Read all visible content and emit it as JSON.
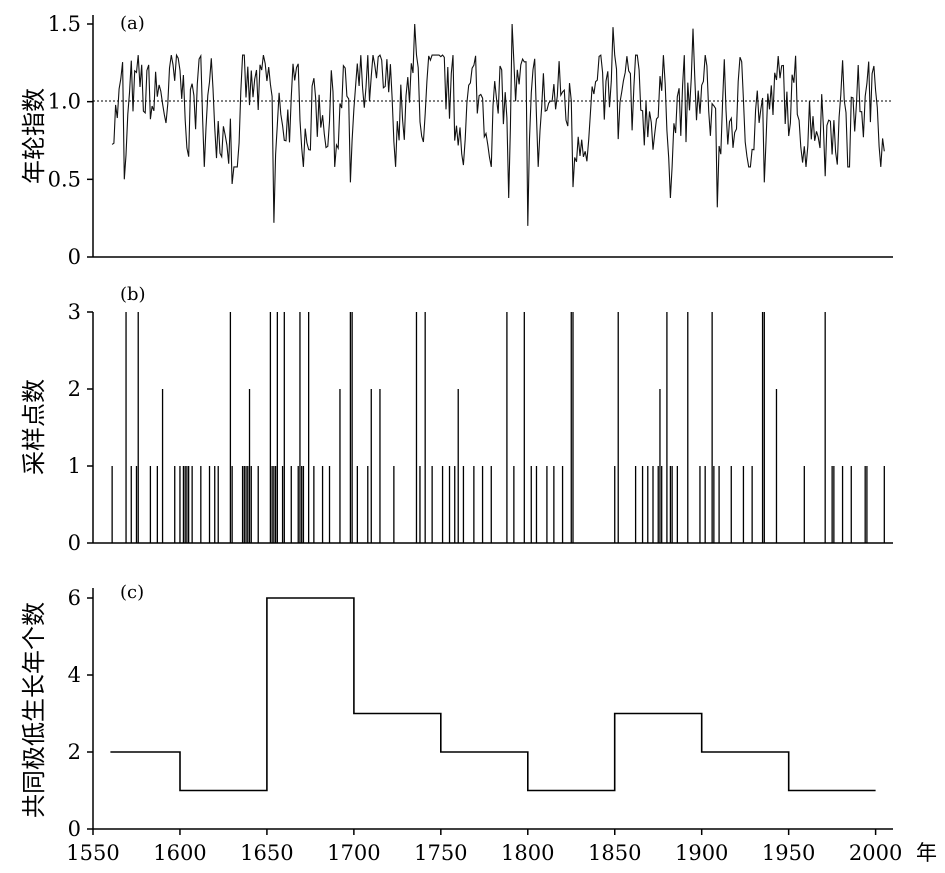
{
  "chart_data": [
    {
      "panel": "(a)",
      "type": "line",
      "ylabel": "年轮指数",
      "ylim": [
        0,
        1.5
      ],
      "yticks": [
        "0",
        "0.5",
        "1.0",
        "1.5"
      ],
      "reference_line": 1.0,
      "x_range": [
        1561,
        2005
      ],
      "notable_minima": [
        {
          "x": 1568,
          "y": 0.5
        },
        {
          "x": 1630,
          "y": 0.47
        },
        {
          "x": 1654,
          "y": 0.22
        },
        {
          "x": 1698,
          "y": 0.48
        },
        {
          "x": 1789,
          "y": 0.38
        },
        {
          "x": 1800,
          "y": 0.2
        },
        {
          "x": 1826,
          "y": 0.45
        },
        {
          "x": 1882,
          "y": 0.38
        },
        {
          "x": 1909,
          "y": 0.32
        },
        {
          "x": 1936,
          "y": 0.48
        },
        {
          "x": 1971,
          "y": 0.52
        }
      ],
      "notable_maxima": [
        {
          "x": 1735,
          "y": 1.5
        },
        {
          "x": 1791,
          "y": 1.5
        },
        {
          "x": 1849,
          "y": 1.48
        },
        {
          "x": 1895,
          "y": 1.47
        }
      ]
    },
    {
      "panel": "(b)",
      "type": "bar",
      "ylabel": "采样点数",
      "ylim": [
        0,
        3
      ],
      "yticks": [
        "0",
        "1",
        "2",
        "3"
      ],
      "points": [
        [
          1561,
          1
        ],
        [
          1569,
          3
        ],
        [
          1572,
          1
        ],
        [
          1575,
          1
        ],
        [
          1576,
          3
        ],
        [
          1583,
          1
        ],
        [
          1587,
          1
        ],
        [
          1590,
          2
        ],
        [
          1597,
          1
        ],
        [
          1600,
          1
        ],
        [
          1602,
          1
        ],
        [
          1603,
          1
        ],
        [
          1604,
          1
        ],
        [
          1605,
          1
        ],
        [
          1607,
          1
        ],
        [
          1612,
          1
        ],
        [
          1617,
          1
        ],
        [
          1620,
          1
        ],
        [
          1622,
          1
        ],
        [
          1629,
          3
        ],
        [
          1630,
          1
        ],
        [
          1636,
          1
        ],
        [
          1637,
          1
        ],
        [
          1638,
          1
        ],
        [
          1639,
          1
        ],
        [
          1640,
          2
        ],
        [
          1641,
          1
        ],
        [
          1645,
          1
        ],
        [
          1652,
          3
        ],
        [
          1653,
          1
        ],
        [
          1654,
          1
        ],
        [
          1655,
          1
        ],
        [
          1656,
          3
        ],
        [
          1659,
          1
        ],
        [
          1660,
          3
        ],
        [
          1664,
          1
        ],
        [
          1668,
          1
        ],
        [
          1669,
          3
        ],
        [
          1670,
          1
        ],
        [
          1671,
          1
        ],
        [
          1674,
          3
        ],
        [
          1677,
          1
        ],
        [
          1682,
          1
        ],
        [
          1686,
          1
        ],
        [
          1692,
          2
        ],
        [
          1698,
          3
        ],
        [
          1699,
          3
        ],
        [
          1702,
          1
        ],
        [
          1708,
          1
        ],
        [
          1710,
          2
        ],
        [
          1715,
          2
        ],
        [
          1723,
          1
        ],
        [
          1736,
          3
        ],
        [
          1738,
          1
        ],
        [
          1741,
          3
        ],
        [
          1745,
          1
        ],
        [
          1751,
          1
        ],
        [
          1755,
          1
        ],
        [
          1758,
          1
        ],
        [
          1760,
          2
        ],
        [
          1763,
          1
        ],
        [
          1769,
          1
        ],
        [
          1774,
          1
        ],
        [
          1779,
          1
        ],
        [
          1788,
          3
        ],
        [
          1792,
          1
        ],
        [
          1798,
          3
        ],
        [
          1802,
          1
        ],
        [
          1805,
          1
        ],
        [
          1811,
          1
        ],
        [
          1815,
          1
        ],
        [
          1820,
          1
        ],
        [
          1825,
          3
        ],
        [
          1826,
          3
        ],
        [
          1850,
          1
        ],
        [
          1852,
          3
        ],
        [
          1862,
          1
        ],
        [
          1866,
          1
        ],
        [
          1869,
          1
        ],
        [
          1872,
          1
        ],
        [
          1875,
          1
        ],
        [
          1876,
          2
        ],
        [
          1877,
          1
        ],
        [
          1880,
          3
        ],
        [
          1882,
          1
        ],
        [
          1883,
          1
        ],
        [
          1886,
          1
        ],
        [
          1892,
          3
        ],
        [
          1899,
          1
        ],
        [
          1902,
          1
        ],
        [
          1906,
          3
        ],
        [
          1907,
          1
        ],
        [
          1910,
          1
        ],
        [
          1917,
          1
        ],
        [
          1924,
          1
        ],
        [
          1929,
          1
        ],
        [
          1935,
          3
        ],
        [
          1936,
          3
        ],
        [
          1943,
          2
        ],
        [
          1959,
          1
        ],
        [
          1971,
          3
        ],
        [
          1975,
          1
        ],
        [
          1976,
          1
        ],
        [
          1981,
          1
        ],
        [
          1986,
          1
        ],
        [
          1994,
          1
        ],
        [
          1995,
          1
        ],
        [
          2005,
          1
        ]
      ]
    },
    {
      "panel": "(c)",
      "type": "line",
      "step": true,
      "ylabel": "共同极低生长年个数",
      "ylim": [
        0,
        6
      ],
      "yticks": [
        "0",
        "2",
        "4",
        "6"
      ],
      "steps": [
        {
          "from": 1560,
          "to": 1600,
          "value": 2
        },
        {
          "from": 1600,
          "to": 1650,
          "value": 1
        },
        {
          "from": 1650,
          "to": 1700,
          "value": 6
        },
        {
          "from": 1700,
          "to": 1750,
          "value": 3
        },
        {
          "from": 1750,
          "to": 1800,
          "value": 2
        },
        {
          "from": 1800,
          "to": 1850,
          "value": 1
        },
        {
          "from": 1850,
          "to": 1900,
          "value": 3
        },
        {
          "from": 1900,
          "to": 1950,
          "value": 2
        },
        {
          "from": 1950,
          "to": 2000,
          "value": 1
        }
      ],
      "xlabel": "年",
      "xlim": [
        1550,
        2010
      ],
      "xticks": [
        "1550",
        "1600",
        "1650",
        "1700",
        "1750",
        "1800",
        "1850",
        "1900",
        "1950",
        "2000"
      ],
      "grid": false
    }
  ]
}
